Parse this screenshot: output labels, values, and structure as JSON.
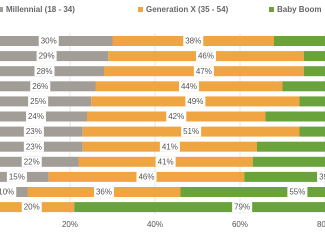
{
  "chart_data": {
    "type": "stacked-barh",
    "series": [
      {
        "name": "Millennial (18 - 34)",
        "color": "#a39d98",
        "values": [
          30,
          29,
          28,
          26,
          25,
          24,
          23,
          23,
          22,
          15,
          10,
          1
        ],
        "value_labels": [
          "30%",
          "29%",
          "28%",
          "26%",
          "25%",
          "24%",
          "23%",
          "23%",
          "22%",
          "15%",
          "10%",
          null
        ]
      },
      {
        "name": "Generation X (35 - 54)",
        "color": "#f0a543",
        "values": [
          38,
          46,
          47,
          44,
          49,
          42,
          51,
          41,
          41,
          46,
          36,
          20
        ],
        "value_labels": [
          "38%",
          "46%",
          "47%",
          "44%",
          "49%",
          "42%",
          "51%",
          "41%",
          "41%",
          "46%",
          "36%",
          "20%"
        ]
      },
      {
        "name": "Baby Boom",
        "color": "#6aa23c",
        "values": [
          32,
          25,
          25,
          30,
          26,
          34,
          26,
          36,
          37,
          39,
          55,
          79
        ],
        "value_labels": [
          null,
          null,
          null,
          null,
          null,
          null,
          null,
          null,
          null,
          "39%",
          "55%",
          "79%"
        ]
      }
    ],
    "xlim": [
      0,
      100
    ],
    "xticks": [
      {
        "value": 20,
        "label": "20%"
      },
      {
        "value": 40,
        "label": "40%"
      },
      {
        "value": 60,
        "label": "60%"
      },
      {
        "value": 80,
        "label": "80%"
      }
    ],
    "grid": true
  }
}
